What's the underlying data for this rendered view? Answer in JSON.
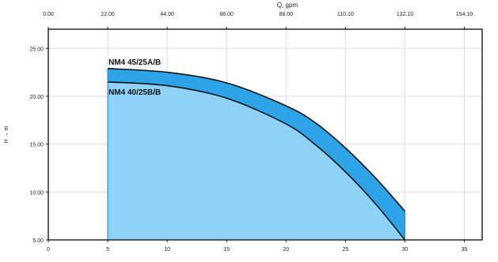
{
  "chart_data": {
    "type": "area",
    "title": "",
    "x": {
      "label": "",
      "ticks": [
        0,
        5,
        10,
        15,
        20,
        25,
        30,
        35
      ],
      "tick_labels": [
        "0",
        "5",
        "10",
        "15",
        "20",
        "25",
        "30",
        "35"
      ],
      "range": [
        0,
        36.5
      ]
    },
    "x_top": {
      "label": "Q, gpm",
      "tick_labels": [
        "0.00",
        "22.00",
        "44.00",
        "66.00",
        "88.00",
        "110.10",
        "132.10",
        "154.10"
      ]
    },
    "y": {
      "label": "H → m",
      "ticks": [
        5,
        10,
        15,
        20,
        25
      ],
      "tick_labels": [
        "5.00",
        "10.00",
        "15.00",
        "20.00",
        "25.00"
      ],
      "range": [
        5,
        27
      ]
    },
    "grid": true,
    "series": [
      {
        "name": "NM4 45/25A/B",
        "color": "#2da4e8",
        "x": [
          5,
          10,
          15,
          20,
          22.5,
          25,
          27.5,
          30
        ],
        "y": [
          22.9,
          22.5,
          21.4,
          19.0,
          17.2,
          14.6,
          11.5,
          8.0
        ]
      },
      {
        "name": "NM4 40/25B/B",
        "color": "#8ed3f7",
        "x": [
          5,
          10,
          15,
          20,
          22.5,
          25,
          27.5,
          30
        ],
        "y": [
          21.5,
          21.1,
          19.8,
          17.1,
          14.9,
          12.1,
          8.8,
          5.0
        ]
      }
    ]
  }
}
